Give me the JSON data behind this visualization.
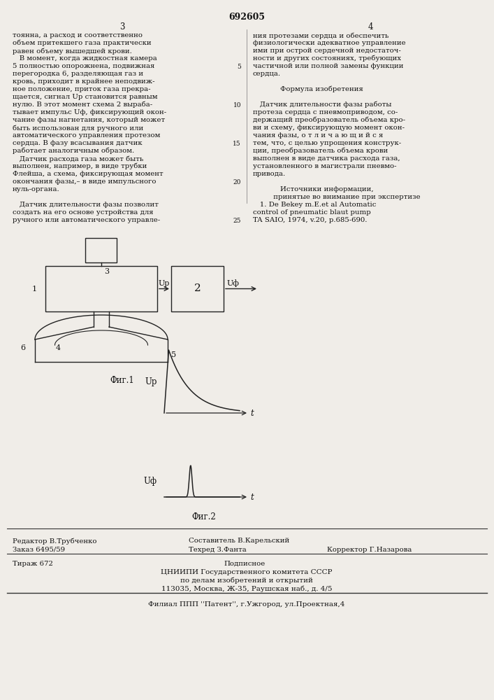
{
  "bg_color": "#f0ede8",
  "col_left_lines": [
    "тоянна, а расход и соответственно",
    "объем притекшего газа практически",
    "равен объему вышедшей крови.",
    "   В момент, когда жидкостная камера",
    "5 полностью опорожнена, подвижная",
    "перегородка 6, разделяющая газ и",
    "кровь, приходит в крайнее неподвиж-",
    "ное положение, приток газа прекра-",
    "щается, сигнал Up становится равным",
    "нулю. В этот момент схема 2 выраба-",
    "тывает импульс Uф, фиксирующий окон-",
    "чание фазы нагнетания, который может",
    "быть использован для ручного или",
    "автоматического управления протезом",
    "сердца. В фазу всасывания датчик",
    "работает аналогичным образом.",
    "   Датчик расхода газа может быть",
    "выполнен, например, в виде трубки",
    "Флейша, а схема, фиксирующая момент",
    "окончания фазы,– в виде импульсного",
    "нуль-органа.",
    " ",
    "   Датчик длительности фазы позволит",
    "создать на его основе устройства для",
    "ручного или автоматического управле-"
  ],
  "col_right_lines": [
    "ния протезами сердца и обеспечить",
    "физиологически адекватное управление",
    "ими при острой сердечной недостаточ-",
    "ности и других состояниях, требующих",
    "частичной или полной замены функции",
    "сердца.",
    " ",
    "            Формула изобретения",
    " ",
    "   Датчик длительности фазы работы",
    "протеза сердца с пневмоприводом, со-",
    "держащий преобразователь объема кро-",
    "ви и схему, фиксирующую момент окон-",
    "чания фазы, о т л и ч а ю щ и й с я",
    "тем, что, с целью упрощения конструк-",
    "ции, преобразователь объема крови",
    "выполнен в виде датчика расхода газа,",
    "установленного в магистрали пневмо-",
    "привода.",
    " ",
    "            Источники информации,",
    "         принятые во внимание при экспертизе",
    "   1. De Bekey m.E.et al Automatic",
    "control of pneumatic blaut pump",
    "TA SAIO, 1974, v.20, p.685-690."
  ],
  "fig1_label": "Фиг.1",
  "fig2_label": "Фиг.2",
  "editor_line": "Редактор В.Трубченко",
  "composer_line": "Составитель В.Карельский",
  "tech_line": "Техред З.Фанта",
  "corrector_line": "Корректор Г.Назарова",
  "order_line": "Заказ 6495/59",
  "edition_line": "Тираж 672",
  "sub_line": "Подписное",
  "org_line1": "ЦНИИПИ Государственного комитета СССР",
  "org_line2": "по делам изобретений и открытий",
  "org_line3": "113035, Москва, Ж-35, Раушская наб., д. 4/5",
  "branch_line": "Филиал ППП ''Патент'', г.Ужгород, ул.Проектная,4",
  "page_left": "3",
  "page_center": "692605",
  "page_right": "4",
  "line_numbers": [
    "5",
    "10",
    "15",
    "20",
    "25"
  ]
}
